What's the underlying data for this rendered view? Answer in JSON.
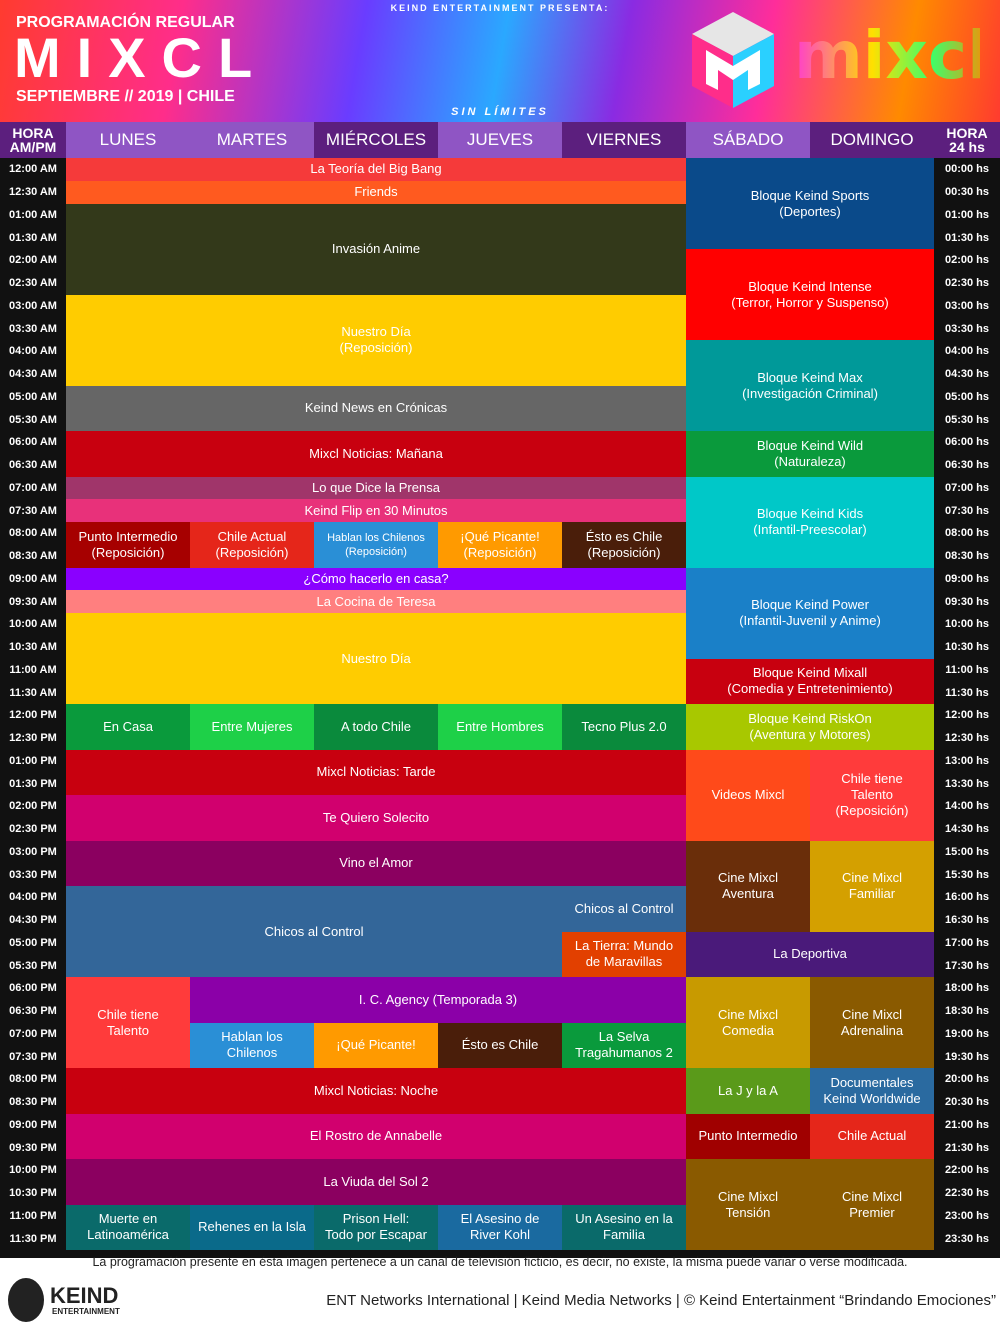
{
  "header": {
    "presenter": "KEIND ENTERTAINMENT PRESENTA:",
    "subtitle": "PROGRAMACIÓN REGULAR",
    "title": "MIXCL",
    "date": "SEPTIEMBRE // 2019 | CHILE",
    "slogan": "SIN LÍMITES",
    "logo_text": "mixcl"
  },
  "columns": {
    "hour_left": [
      "HORA",
      "AM/PM"
    ],
    "days": [
      "LUNES",
      "MARTES",
      "MIÉRCOLES",
      "JUEVES",
      "VIERNES",
      "SÁBADO",
      "DOMINGO"
    ],
    "hour_right": [
      "HORA",
      "24 hs"
    ]
  },
  "hours_12": [
    "12:00 AM",
    "12:30 AM",
    "01:00 AM",
    "01:30 AM",
    "02:00 AM",
    "02:30 AM",
    "03:00 AM",
    "03:30 AM",
    "04:00 AM",
    "04:30 AM",
    "05:00 AM",
    "05:30 AM",
    "06:00 AM",
    "06:30 AM",
    "07:00 AM",
    "07:30 AM",
    "08:00 AM",
    "08:30 AM",
    "09:00 AM",
    "09:30 AM",
    "10:00 AM",
    "10:30 AM",
    "11:00 AM",
    "11:30 AM",
    "12:00 PM",
    "12:30 PM",
    "01:00 PM",
    "01:30 PM",
    "02:00 PM",
    "02:30 PM",
    "03:00 PM",
    "03:30 PM",
    "04:00 PM",
    "04:30 PM",
    "05:00 PM",
    "05:30 PM",
    "06:00 PM",
    "06:30 PM",
    "07:00 PM",
    "07:30 PM",
    "08:00 PM",
    "08:30 PM",
    "09:00 PM",
    "09:30 PM",
    "10:00 PM",
    "10:30 PM",
    "11:00 PM",
    "11:30 PM"
  ],
  "hours_24": [
    "00:00 hs",
    "00:30 hs",
    "01:00 hs",
    "01:30 hs",
    "02:00 hs",
    "02:30 hs",
    "03:00 hs",
    "03:30 hs",
    "04:00 hs",
    "04:30 hs",
    "05:00 hs",
    "05:30 hs",
    "06:00 hs",
    "06:30 hs",
    "07:00 hs",
    "07:30 hs",
    "08:00 hs",
    "08:30 hs",
    "09:00 hs",
    "09:30 hs",
    "10:00 hs",
    "10:30 hs",
    "11:00 hs",
    "11:30 hs",
    "12:00 hs",
    "12:30 hs",
    "13:00 hs",
    "13:30 hs",
    "14:00 hs",
    "14:30 hs",
    "15:00 hs",
    "15:30 hs",
    "16:00 hs",
    "16:30 hs",
    "17:00 hs",
    "17:30 hs",
    "18:00 hs",
    "18:30 hs",
    "19:00 hs",
    "19:30 hs",
    "20:00 hs",
    "20:30 hs",
    "21:00 hs",
    "21:30 hs",
    "22:00 hs",
    "22:30 hs",
    "23:00 hs",
    "23:30 hs"
  ],
  "programs": [
    {
      "lines": [
        "La Teoría del Big Bang"
      ],
      "color": "#f53a3a"
    },
    {
      "lines": [
        "Friends"
      ],
      "color": "#ff5a1f"
    },
    {
      "lines": [
        "Invasión Anime"
      ],
      "color": "#33391a"
    },
    {
      "lines": [
        "Nuestro Día",
        "(Reposición)"
      ],
      "color": "#ffcc00"
    },
    {
      "lines": [
        "Keind News en Crónicas"
      ],
      "color": "#666666"
    },
    {
      "lines": [
        "Mixcl Noticias: Mañana"
      ],
      "color": "#c8000f"
    },
    {
      "lines": [
        "Lo que Dice la Prensa"
      ],
      "color": "#a0356a"
    },
    {
      "lines": [
        "Keind Flip  en 30 Minutos"
      ],
      "color": "#e8317a"
    },
    {
      "lines": [
        "Punto Intermedio",
        "(Reposición)"
      ],
      "color": "#a60000"
    },
    {
      "lines": [
        "Chile Actual",
        "(Reposición)"
      ],
      "color": "#e5261a"
    },
    {
      "lines": [
        "Hablan los Chilenos",
        "(Reposición)"
      ],
      "color": "#2a8fd6"
    },
    {
      "lines": [
        "¡Qué Picante!",
        "(Reposición)"
      ],
      "color": "#ff9a00"
    },
    {
      "lines": [
        "Ésto es Chile",
        "(Reposición)"
      ],
      "color": "#4a1e0a"
    },
    {
      "lines": [
        "¿Cómo hacerlo en casa?"
      ],
      "color": "#8a00ff"
    },
    {
      "lines": [
        "La Cocina de Teresa"
      ],
      "color": "#ff7f7f"
    },
    {
      "lines": [
        "Nuestro Día"
      ],
      "color": "#ffcc00"
    },
    {
      "lines": [
        "En Casa"
      ],
      "color": "#0a9a3c"
    },
    {
      "lines": [
        "Entre Mujeres"
      ],
      "color": "#1ed048"
    },
    {
      "lines": [
        "A todo Chile"
      ],
      "color": "#0a8a3c"
    },
    {
      "lines": [
        "Entre Hombres"
      ],
      "color": "#1ed048"
    },
    {
      "lines": [
        "Tecno Plus 2.0"
      ],
      "color": "#0a8a3c"
    },
    {
      "lines": [
        "Mixcl Noticias: Tarde"
      ],
      "color": "#c8000f"
    },
    {
      "lines": [
        "Te Quiero Solecito"
      ],
      "color": "#d1006e"
    },
    {
      "lines": [
        "Vino el Amor"
      ],
      "color": "#8b0060"
    },
    {
      "lines": [
        "Chicos al Control"
      ],
      "color": "#336699"
    },
    {
      "lines": [
        "Chicos al Control"
      ],
      "color": "#336699"
    },
    {
      "lines": [
        "La Tierra: Mundo",
        "de Maravillas"
      ],
      "color": "#e24000"
    },
    {
      "lines": [
        "Chile tiene",
        "Talento"
      ],
      "color": "#ff3b3b"
    },
    {
      "lines": [
        "I. C. Agency (Temporada 3)"
      ],
      "color": "#8b00a8"
    },
    {
      "lines": [
        "Hablan los",
        "Chilenos"
      ],
      "color": "#2a8fd6"
    },
    {
      "lines": [
        "¡Qué Picante!"
      ],
      "color": "#ff9a00"
    },
    {
      "lines": [
        "Ésto es Chile"
      ],
      "color": "#4a1e0a"
    },
    {
      "lines": [
        "La Selva",
        "Tragahumanos 2"
      ],
      "color": "#0a9a3c"
    },
    {
      "lines": [
        "Mixcl Noticias: Noche"
      ],
      "color": "#c8000f"
    },
    {
      "lines": [
        "El Rostro de Annabelle"
      ],
      "color": "#d1006e"
    },
    {
      "lines": [
        "La Viuda del Sol 2"
      ],
      "color": "#8b0060"
    },
    {
      "lines": [
        "Muerte en",
        "Latinoamérica"
      ],
      "color": "#0a6a6a"
    },
    {
      "lines": [
        "Rehenes en la Isla"
      ],
      "color": "#0a6a8a"
    },
    {
      "lines": [
        "Prison Hell:",
        "Todo por Escapar"
      ],
      "color": "#0a6a6a"
    },
    {
      "lines": [
        "El Asesino de",
        "River Kohl"
      ],
      "color": "#1a6aa0"
    },
    {
      "lines": [
        "Un Asesino en la",
        "Familia"
      ],
      "color": "#0a6a6a"
    },
    {
      "lines": [
        "Bloque Keind Sports",
        "(Deportes)"
      ],
      "color": "#0a4a8a"
    },
    {
      "lines": [
        "Bloque Keind Intense",
        "(Terror, Horror y Suspenso)"
      ],
      "color": "#ff0000"
    },
    {
      "lines": [
        "Bloque Keind Max",
        "(Investigación Criminal)"
      ],
      "color": "#009999"
    },
    {
      "lines": [
        "Bloque Keind Wild",
        "(Naturaleza)"
      ],
      "color": "#0a9a3c"
    },
    {
      "lines": [
        "Bloque Keind Kids",
        "(Infantil-Preescolar)"
      ],
      "color": "#00c8c8"
    },
    {
      "lines": [
        "Bloque Keind Power",
        "(Infantil-Juvenil y Anime)"
      ],
      "color": "#1a80c8"
    },
    {
      "lines": [
        "Bloque Keind Mixall",
        "(Comedia y Entretenimiento)"
      ],
      "color": "#c8000f"
    },
    {
      "lines": [
        "Bloque Keind RiskOn",
        "(Aventura y Motores)"
      ],
      "color": "#a8c800"
    },
    {
      "lines": [
        "Videos Mixcl"
      ],
      "color": "#ff4a1a"
    },
    {
      "lines": [
        "Chile tiene",
        "Talento",
        "(Reposición)"
      ],
      "color": "#ff3b3b"
    },
    {
      "lines": [
        "Cine Mixcl",
        "Aventura"
      ],
      "color": "#6a2e0a"
    },
    {
      "lines": [
        "Cine Mixcl",
        "Familiar"
      ],
      "color": "#d4a000"
    },
    {
      "lines": [
        "La Deportiva"
      ],
      "color": "#4a1a7a"
    },
    {
      "lines": [
        "Cine Mixcl",
        "Comedia"
      ],
      "color": "#c89a00"
    },
    {
      "lines": [
        "Cine Mixcl",
        "Adrenalina"
      ],
      "color": "#8a5a00"
    },
    {
      "lines": [
        "La J y la A"
      ],
      "color": "#5a9a1a"
    },
    {
      "lines": [
        "Documentales",
        "Keind Worldwide"
      ],
      "color": "#2a6aa0"
    },
    {
      "lines": [
        "Punto Intermedio"
      ],
      "color": "#a00000"
    },
    {
      "lines": [
        "Chile Actual"
      ],
      "color": "#e5261a"
    },
    {
      "lines": [
        "Cine Mixcl",
        "Tensión"
      ],
      "color": "#8a5a00"
    },
    {
      "lines": [
        "Cine Mixcl",
        "Premier"
      ],
      "color": "#8a5a00"
    }
  ],
  "footer": {
    "notice": "La programación presente en ésta imagen pertenece a un canal de televisión ficticio, es decir, no existe, la misma puede variar o verse modificada.",
    "brand": "KEIND",
    "brand_sub": "ENTERTAINMENT",
    "credits": "ENT Networks International | Keind Media Networks | © Keind Entertainment “Brindando Emociones”"
  }
}
